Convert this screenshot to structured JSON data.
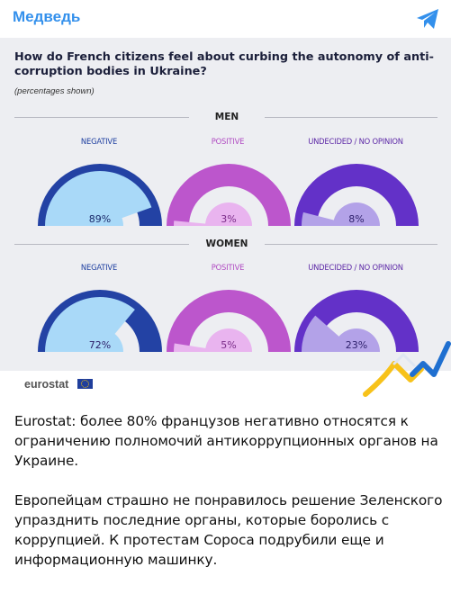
{
  "header": {
    "channel_name": "Медведь"
  },
  "infographic": {
    "title": "How do French citizens feel about curbing the autonomy of anti-corruption bodies in Ukraine?",
    "subtitle": "(percentages shown)",
    "source": "eurostat"
  },
  "chart_data": [
    {
      "type": "pie",
      "title": "MEN",
      "subtype": "semicircle-gauge",
      "gauges": [
        {
          "label": "NEGATIVE",
          "value": 89,
          "value_label": "89%",
          "label_color": "#1e3fa0",
          "fill_color": "#a9d9f8",
          "rest_color": "#2342a4"
        },
        {
          "label": "POSITIVE",
          "value": 3,
          "value_label": "3%",
          "label_color": "#b04bc2",
          "fill_color": "#e9b4ef",
          "rest_color": "#bc56cc"
        },
        {
          "label": "UNDECIDED / NO OPINION",
          "value": 8,
          "value_label": "8%",
          "label_color": "#5e2aa7",
          "fill_color": "#b3a2e8",
          "rest_color": "#6331c8"
        }
      ]
    },
    {
      "type": "pie",
      "title": "WOMEN",
      "subtype": "semicircle-gauge",
      "gauges": [
        {
          "label": "NEGATIVE",
          "value": 72,
          "value_label": "72%",
          "label_color": "#1e3fa0",
          "fill_color": "#a9d9f8",
          "rest_color": "#2342a4"
        },
        {
          "label": "POSITIVE",
          "value": 5,
          "value_label": "5%",
          "label_color": "#b04bc2",
          "fill_color": "#e9b4ef",
          "rest_color": "#bc56cc"
        },
        {
          "label": "UNDECIDED / NO OPINION",
          "value": 23,
          "value_label": "23%",
          "label_color": "#5e2aa7",
          "fill_color": "#b3a2e8",
          "rest_color": "#6331c8"
        }
      ]
    }
  ],
  "post": {
    "paragraphs": [
      "Eurostat: более 80% французов негативно относятся к ограничению полномочий антикоррупционных органов на Украине.",
      "Европейцам страшно не понравилось решение Зеленского упразднить последние органы, которые боролись с коррупцией. К протестам Сороса подрубили еще и информационную машинку."
    ]
  },
  "icons": {
    "send": "send-icon"
  }
}
